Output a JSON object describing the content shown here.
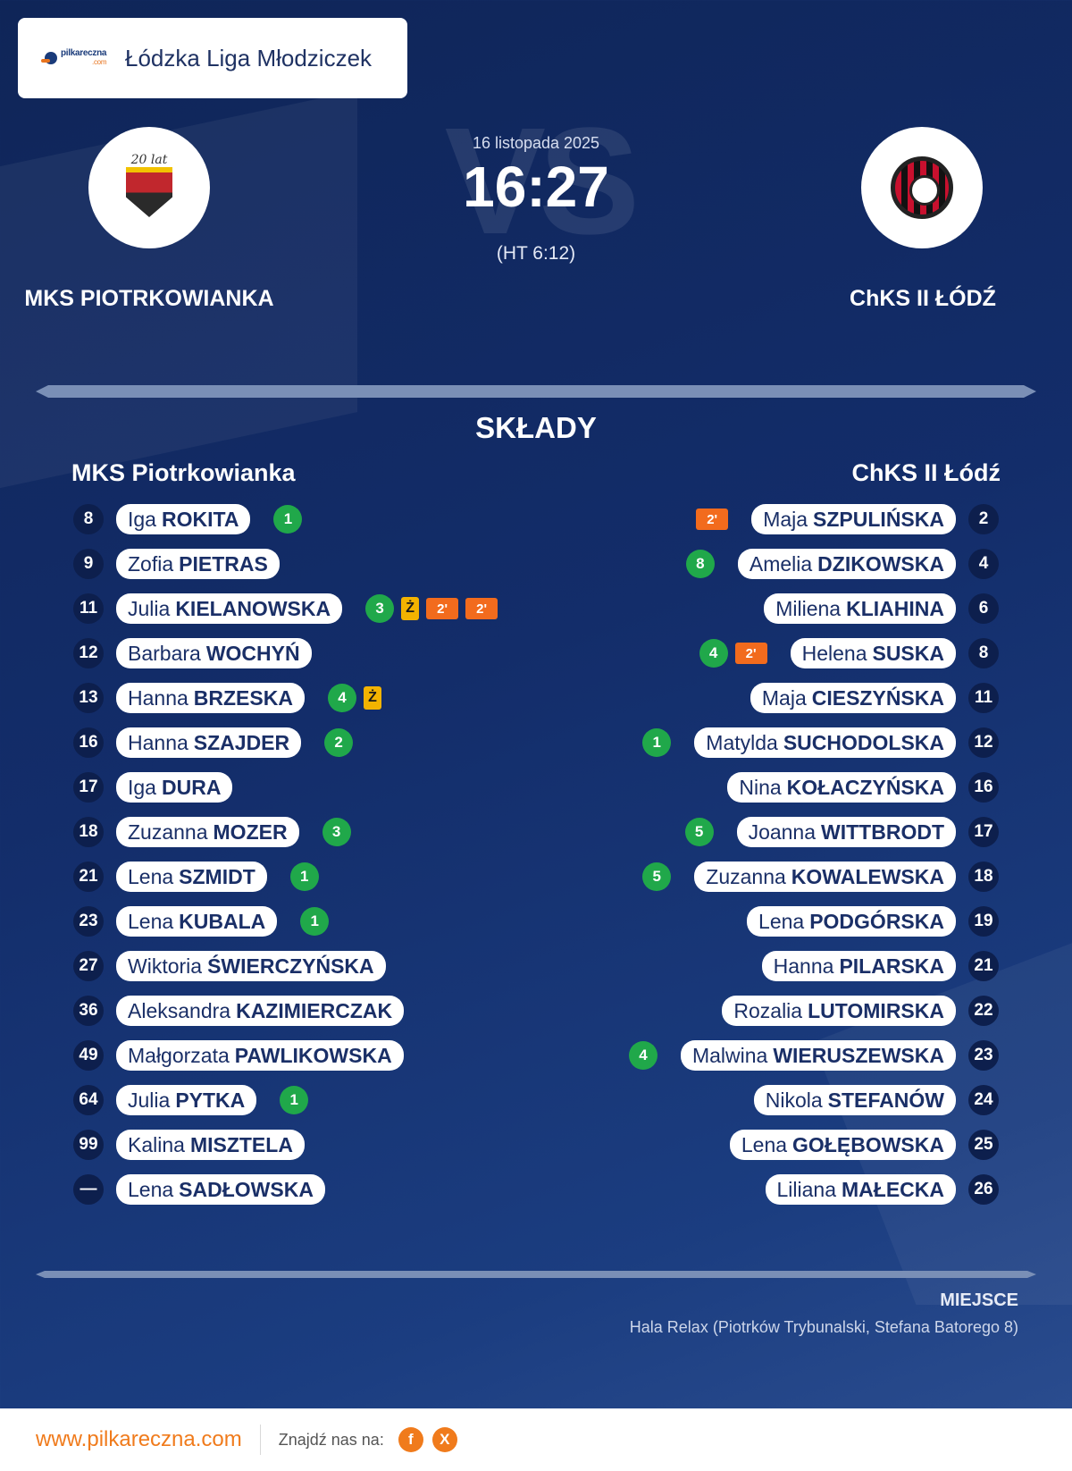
{
  "league": {
    "logo_text": "pilkareczna",
    "logo_sub": ".com",
    "name": "Łódzka Liga Młodziczek"
  },
  "match": {
    "date": "16 listopada 2025",
    "score": "16:27",
    "halftime": "(HT 6:12)",
    "vs": "VS"
  },
  "home": {
    "name": "MKS PIOTRKOWIANKA",
    "short": "MKS Piotrkowianka",
    "crest_text": "20 lat"
  },
  "away": {
    "name": "ChKS II ŁÓDŹ",
    "short": "ChKS II Łódź"
  },
  "section_title": "SKŁADY",
  "home_players": [
    {
      "num": "8",
      "first": "Iga",
      "last": "ROKITA",
      "events": [
        {
          "t": "goal",
          "v": "1"
        }
      ]
    },
    {
      "num": "9",
      "first": "Zofia",
      "last": "PIETRAS",
      "events": []
    },
    {
      "num": "11",
      "first": "Julia",
      "last": "KIELANOWSKA",
      "events": [
        {
          "t": "goal",
          "v": "3"
        },
        {
          "t": "yc",
          "v": "Ż"
        },
        {
          "t": "susp",
          "v": "2'"
        },
        {
          "t": "susp",
          "v": "2'"
        }
      ]
    },
    {
      "num": "12",
      "first": "Barbara",
      "last": "WOCHYŃ",
      "events": []
    },
    {
      "num": "13",
      "first": "Hanna",
      "last": "BRZESKA",
      "events": [
        {
          "t": "goal",
          "v": "4"
        },
        {
          "t": "yc",
          "v": "Ż"
        }
      ]
    },
    {
      "num": "16",
      "first": "Hanna",
      "last": "SZAJDER",
      "events": [
        {
          "t": "goal",
          "v": "2"
        }
      ]
    },
    {
      "num": "17",
      "first": "Iga",
      "last": "DURA",
      "events": []
    },
    {
      "num": "18",
      "first": "Zuzanna",
      "last": "MOZER",
      "events": [
        {
          "t": "goal",
          "v": "3"
        }
      ]
    },
    {
      "num": "21",
      "first": "Lena",
      "last": "SZMIDT",
      "events": [
        {
          "t": "goal",
          "v": "1"
        }
      ]
    },
    {
      "num": "23",
      "first": "Lena",
      "last": "KUBALA",
      "events": [
        {
          "t": "goal",
          "v": "1"
        }
      ]
    },
    {
      "num": "27",
      "first": "Wiktoria",
      "last": "ŚWIERCZYŃSKA",
      "events": []
    },
    {
      "num": "36",
      "first": "Aleksandra",
      "last": "KAZIMIERCZAK",
      "events": []
    },
    {
      "num": "49",
      "first": "Małgorzata",
      "last": "PAWLIKOWSKA",
      "events": []
    },
    {
      "num": "64",
      "first": "Julia",
      "last": "PYTKA",
      "events": [
        {
          "t": "goal",
          "v": "1"
        }
      ]
    },
    {
      "num": "99",
      "first": "Kalina",
      "last": "MISZTELA",
      "events": []
    },
    {
      "num": "—",
      "first": "Lena",
      "last": "SADŁOWSKA",
      "events": []
    }
  ],
  "away_players": [
    {
      "num": "2",
      "first": "Maja",
      "last": "SZPULIŃSKA",
      "events": [
        {
          "t": "susp",
          "v": "2'"
        }
      ]
    },
    {
      "num": "4",
      "first": "Amelia",
      "last": "DZIKOWSKA",
      "events": [
        {
          "t": "goal",
          "v": "8"
        }
      ]
    },
    {
      "num": "6",
      "first": "Miliena",
      "last": "KLIAHINA",
      "events": []
    },
    {
      "num": "8",
      "first": "Helena",
      "last": "SUSKA",
      "events": [
        {
          "t": "goal",
          "v": "4"
        },
        {
          "t": "susp",
          "v": "2'"
        }
      ]
    },
    {
      "num": "11",
      "first": "Maja",
      "last": "CIESZYŃSKA",
      "events": []
    },
    {
      "num": "12",
      "first": "Matylda",
      "last": "SUCHODOLSKA",
      "events": [
        {
          "t": "goal",
          "v": "1"
        }
      ]
    },
    {
      "num": "16",
      "first": "Nina",
      "last": "KOŁACZYŃSKA",
      "events": []
    },
    {
      "num": "17",
      "first": "Joanna",
      "last": "WITTBRODT",
      "events": [
        {
          "t": "goal",
          "v": "5"
        }
      ]
    },
    {
      "num": "18",
      "first": "Zuzanna",
      "last": "KOWALEWSKA",
      "events": [
        {
          "t": "goal",
          "v": "5"
        }
      ]
    },
    {
      "num": "19",
      "first": "Lena",
      "last": "PODGÓRSKA",
      "events": []
    },
    {
      "num": "21",
      "first": "Hanna",
      "last": "PILARSKA",
      "events": []
    },
    {
      "num": "22",
      "first": "Rozalia",
      "last": "LUTOMIRSKA",
      "events": []
    },
    {
      "num": "23",
      "first": "Malwina",
      "last": "WIERUSZEWSKA",
      "events": [
        {
          "t": "goal",
          "v": "4"
        }
      ]
    },
    {
      "num": "24",
      "first": "Nikola",
      "last": "STEFANÓW",
      "events": []
    },
    {
      "num": "25",
      "first": "Lena",
      "last": "GOŁĘBOWSKA",
      "events": []
    },
    {
      "num": "26",
      "first": "Liliana",
      "last": "MAŁECKA",
      "events": []
    }
  ],
  "venue": {
    "label": "MIEJSCE",
    "text": "Hala Relax (Piotrków Trybunalski, Stefana Batorego 8)"
  },
  "footer": {
    "site": "www.pilkareczna.com",
    "find": "Znajdź nas na:",
    "social": [
      "f",
      "X"
    ]
  },
  "colors": {
    "goal": "#20a84a",
    "yellow_card": "#f3b300",
    "suspension": "#f26b1d",
    "accent": "#f07b1c"
  }
}
